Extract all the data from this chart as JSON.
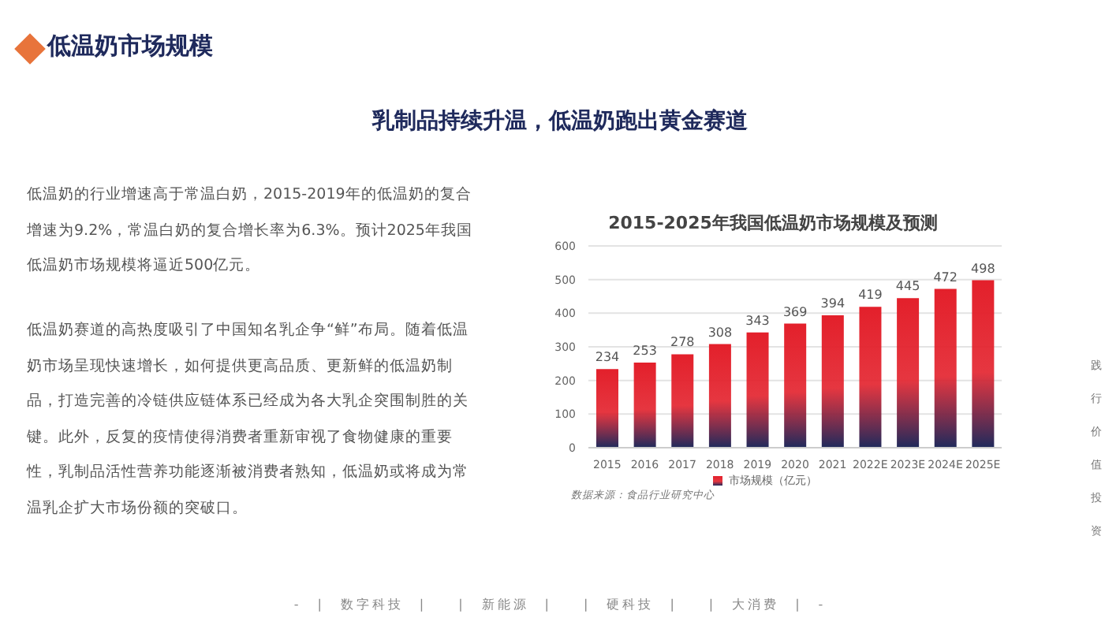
{
  "chart_data": {
    "type": "bar",
    "title": "2015-2025年我国低温奶市场规模及预测",
    "subtitle": "乳制品持续升温，低温奶跑出黄金赛道",
    "categories": [
      "2015",
      "2016",
      "2017",
      "2018",
      "2019",
      "2020",
      "2021",
      "2022E",
      "2023E",
      "2024E",
      "2025E"
    ],
    "series": [
      {
        "name": "市场规模（亿元）",
        "color": "#e3202b",
        "values": [
          234,
          253,
          278,
          308,
          343,
          369,
          394,
          419,
          445,
          472,
          498
        ]
      }
    ],
    "ylim": [
      0,
      600
    ],
    "yticks": [
      0,
      100,
      200,
      300,
      400,
      500,
      600
    ],
    "grid": "y",
    "legend": "bottom",
    "data_labels": true,
    "annotations": [
      "低温奶市场规模",
      "低温奶的行业增速高于常温白奶，2015-2019年的低温奶的复合增速为9.2%，常温白奶的复合增长率为6.3%。预计2025年我国低温奶市场规模将逼近500亿元。",
      "低温奶赛道的高热度吸引了中国知名乳企争“鲜”布局。随着低温奶市场呈现快速增长，如何提供更高品质、更新鲜的低温奶制品，打造完善的冷链供应链体系已经成为各大乳企突围制胜的关键。此外，反复的疫情使得消费者重新审视了食物健康的重要性，乳制品活性营养功能逐渐被消费者熟知，低温奶或将成为常温乳企扩大市场份额的突破口。",
      "数据来源：食品行业研究中心",
      "践行价值投资",
      "-　|　数字科技　|　　|　新能源　|　　|　硬科技　|　　|　大消费　|　-"
    ]
  }
}
